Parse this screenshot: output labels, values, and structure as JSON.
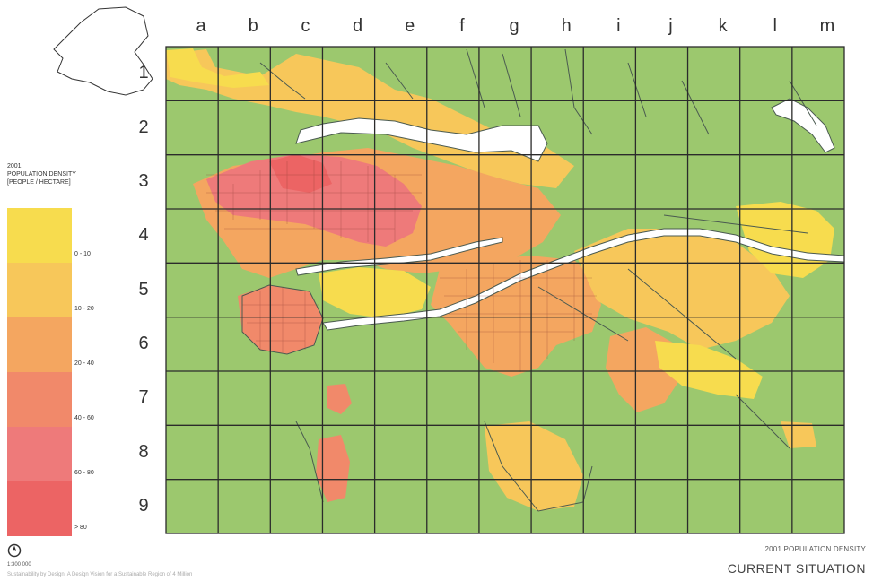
{
  "map": {
    "columns": [
      "a",
      "b",
      "c",
      "d",
      "e",
      "f",
      "g",
      "h",
      "i",
      "j",
      "k",
      "l",
      "m"
    ],
    "rows": [
      "1",
      "2",
      "3",
      "4",
      "5",
      "6",
      "7",
      "8",
      "9"
    ],
    "colors": {
      "land": "#9cc86e",
      "water": "#ffffff",
      "grid": "#2b2b2b",
      "outline": "#4a5a50",
      "streets": "#6a4a3a"
    }
  },
  "legend": {
    "title_lines": [
      "2001",
      "POPULATION DENSITY",
      "[people / hectare]"
    ],
    "items": [
      {
        "label": "0 - 10",
        "color": "#f7dc4e"
      },
      {
        "label": "10 - 20",
        "color": "#f7c75a"
      },
      {
        "label": "20 - 40",
        "color": "#f4a660"
      },
      {
        "label": "40 - 60",
        "color": "#f1896a"
      },
      {
        "label": "60 - 80",
        "color": "#ee7a7a"
      },
      {
        "label": "> 80",
        "color": "#ec6464"
      }
    ]
  },
  "footer": {
    "north_icon": "north-arrow-icon",
    "scale": "1:300 000",
    "credit": "Sustainability by Design: A Design Vision for a Sustainable Region of 4 Million",
    "subtitle": "2001 POPULATION DENSITY",
    "title": "CURRENT SITUATION"
  }
}
